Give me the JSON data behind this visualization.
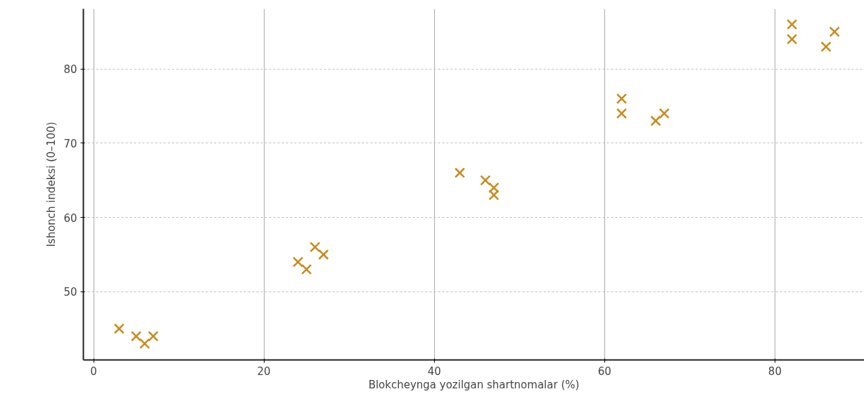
{
  "chart_data": {
    "type": "scatter",
    "xlabel": "Blokcheynga yozilgan shartnomalar (%)",
    "ylabel": "Ishonch indeksi (0–100)",
    "x": [
      3,
      5,
      6,
      7,
      24,
      25,
      26,
      27,
      43,
      46,
      47,
      47,
      62,
      62,
      66,
      67,
      82,
      82,
      86,
      87
    ],
    "series": [
      {
        "color": "#c8891a",
        "values": [
          45,
          44,
          43,
          44,
          54,
          53,
          56,
          55,
          66,
          65,
          64,
          63,
          76,
          74,
          73,
          74,
          86,
          84,
          83,
          85
        ]
      }
    ],
    "xlim": [
      -1.2,
      90.5
    ],
    "ylim": [
      40.8,
      88.1
    ],
    "xticks": [
      0,
      20,
      40,
      60,
      80
    ],
    "yticks": [
      50,
      60,
      70,
      80
    ],
    "grid": true,
    "marker": "cross"
  }
}
